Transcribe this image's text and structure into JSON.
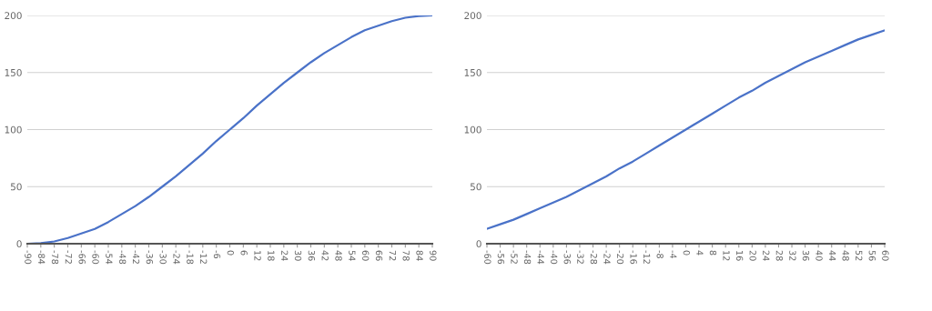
{
  "chart_data": [
    {
      "type": "line",
      "x": [
        -90,
        -84,
        -78,
        -72,
        -66,
        -60,
        -54,
        -48,
        -42,
        -36,
        -30,
        -24,
        -18,
        -12,
        -6,
        0,
        6,
        12,
        18,
        24,
        30,
        36,
        42,
        48,
        54,
        60,
        66,
        72,
        78,
        84,
        90
      ],
      "series": [
        {
          "color": "#4a72c8",
          "values": [
            0,
            0.5,
            2,
            5,
            9,
            13,
            19,
            26,
            33,
            41,
            50,
            59,
            69,
            79,
            90,
            100,
            110,
            121,
            131,
            141,
            150,
            159,
            167,
            174,
            181,
            187,
            191,
            195,
            198,
            199.5,
            200
          ]
        }
      ],
      "xlim": [
        -90,
        90
      ],
      "xticks": [
        -90,
        -84,
        -78,
        -72,
        -66,
        -60,
        -54,
        -48,
        -42,
        -36,
        -30,
        -24,
        -18,
        -12,
        -6,
        0,
        6,
        12,
        18,
        24,
        30,
        36,
        42,
        48,
        54,
        60,
        66,
        72,
        78,
        84,
        90
      ],
      "ylim": [
        0,
        200
      ],
      "yticks": [
        0,
        50,
        100,
        150,
        200
      ],
      "grid": "y",
      "marker": "none",
      "line_style": "solid"
    },
    {
      "type": "line",
      "x": [
        -60,
        -56,
        -52,
        -48,
        -44,
        -40,
        -36,
        -32,
        -28,
        -24,
        -20,
        -16,
        -12,
        -8,
        -4,
        0,
        4,
        8,
        12,
        16,
        20,
        24,
        28,
        32,
        36,
        40,
        44,
        48,
        52,
        56,
        60
      ],
      "series": [
        {
          "color": "#4a72c8",
          "values": [
            13,
            17,
            21,
            26,
            31,
            36,
            41,
            47,
            53,
            59,
            66,
            72,
            79,
            86,
            93,
            100,
            107,
            114,
            121,
            128,
            134,
            141,
            147,
            153,
            159,
            164,
            169,
            174,
            179,
            183,
            187
          ]
        }
      ],
      "xlim": [
        -60,
        60
      ],
      "xticks": [
        -60,
        -56,
        -52,
        -48,
        -44,
        -40,
        -36,
        -32,
        -28,
        -24,
        -20,
        -16,
        -12,
        -8,
        -4,
        0,
        4,
        8,
        12,
        16,
        20,
        24,
        28,
        32,
        36,
        40,
        44,
        48,
        52,
        56,
        60
      ],
      "ylim": [
        0,
        200
      ],
      "yticks": [
        0,
        50,
        100,
        150,
        200
      ],
      "grid": "y",
      "marker": "none",
      "line_style": "solid"
    }
  ]
}
